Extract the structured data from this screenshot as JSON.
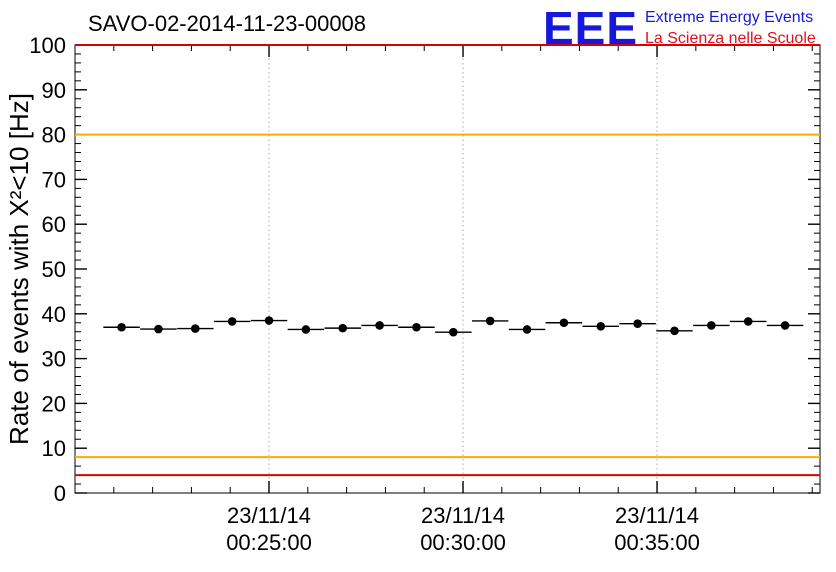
{
  "header": {
    "title": "SAVO-02-2014-11-23-00008",
    "logo_text": "EEE",
    "logo_line1": "Extreme Energy Events",
    "logo_line2": "La Scienza nelle Scuole",
    "logo_blue": "#1717dd",
    "logo_red": "#e01020"
  },
  "axis": {
    "ylabel_display": "Rate of events with X²<10 [Hz]"
  },
  "chart_data": {
    "type": "scatter",
    "title": "SAVO-02-2014-11-23-00008",
    "ylabel": "Rate of events with X^2<10 [Hz]",
    "xlabel": "",
    "ylim": [
      0,
      100
    ],
    "y_major_ticks": [
      0,
      10,
      20,
      30,
      40,
      50,
      60,
      70,
      80,
      90,
      100
    ],
    "y_minor_step": 2,
    "x_minutes_range": [
      20.0,
      39.2
    ],
    "x_minor_step": 1,
    "x_major_ticks": [
      {
        "minute": 25,
        "label_line1": "23/11/14",
        "label_line2": "00:25:00"
      },
      {
        "minute": 30,
        "label_line1": "23/11/14",
        "label_line2": "00:30:00"
      },
      {
        "minute": 35,
        "label_line1": "23/11/14",
        "label_line2": "00:35:00"
      }
    ],
    "grid": {
      "vertical_dotted": true,
      "color": "#aaaaaa"
    },
    "threshold_lines": [
      {
        "y": 100,
        "color": "#dd0000"
      },
      {
        "y": 80,
        "color": "#ffaa00"
      },
      {
        "y": 8,
        "color": "#ffaa00"
      },
      {
        "y": 4,
        "color": "#dd0000"
      }
    ],
    "series": [
      {
        "name": "rate",
        "marker": "filled-circle",
        "color": "#000000",
        "bin_halfwidth_minutes": 0.47,
        "x_minutes": [
          21.2,
          22.15,
          23.1,
          24.05,
          25.0,
          25.95,
          26.9,
          27.85,
          28.8,
          29.75,
          30.7,
          31.65,
          32.6,
          33.55,
          34.5,
          35.45,
          36.4,
          37.35,
          38.3
        ],
        "values": [
          37.0,
          36.6,
          36.7,
          38.3,
          38.5,
          36.5,
          36.8,
          37.4,
          37.0,
          35.9,
          38.4,
          36.5,
          38.0,
          37.2,
          37.8,
          36.2,
          37.4,
          38.3,
          37.4
        ]
      }
    ],
    "legend": "none"
  }
}
